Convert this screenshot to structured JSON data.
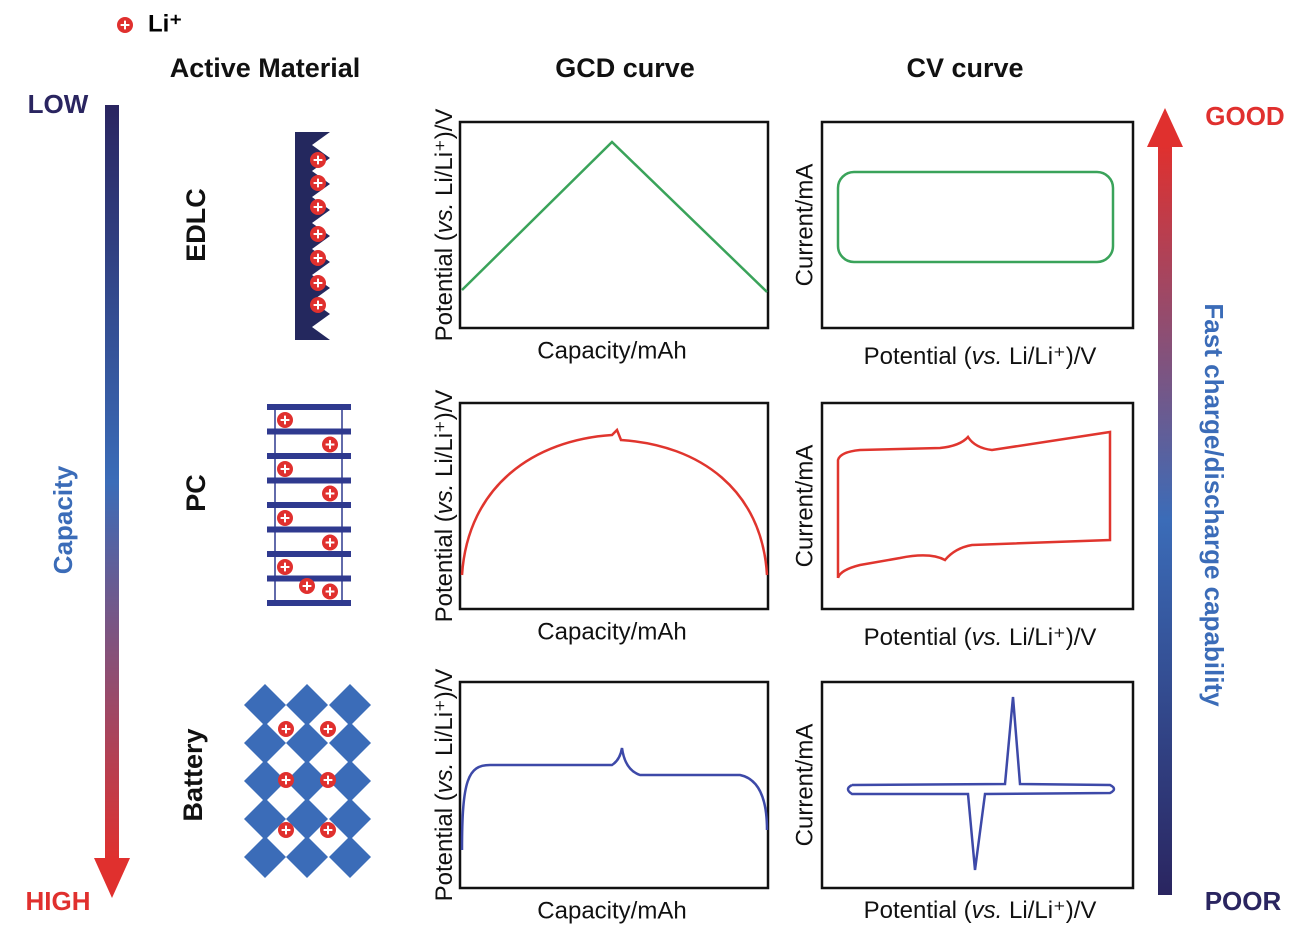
{
  "legend": {
    "label": "Li⁺"
  },
  "headers": {
    "material": "Active Material",
    "gcd": "GCD curve",
    "cv": "CV curve"
  },
  "capacity_scale": {
    "title": "Capacity",
    "top": "LOW",
    "bottom": "HIGH"
  },
  "rate_scale": {
    "title": "Fast charge/discharge capability",
    "top": "GOOD",
    "bottom": "POOR"
  },
  "rows": [
    {
      "label": "EDLC"
    },
    {
      "label": "PC"
    },
    {
      "label": "Battery"
    }
  ],
  "axes": {
    "potential": [
      "Potential (",
      "vs.",
      " Li/Li⁺)/V"
    ],
    "capacity": "Capacity/mAh",
    "current": "Current/mA"
  }
}
